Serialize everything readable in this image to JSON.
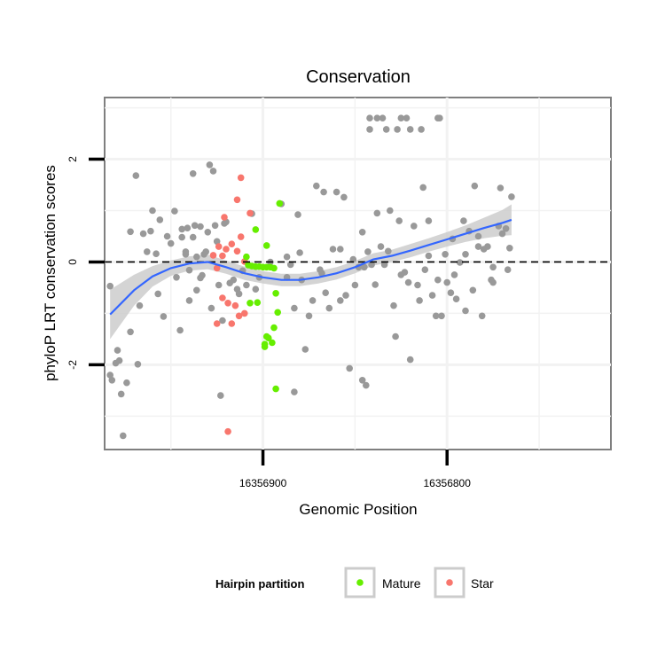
{
  "chart_data": {
    "type": "scatter",
    "title": "Conservation",
    "xlabel": "Genomic Position",
    "ylabel": "phyloP LRT conservation scores",
    "x_reversed": true,
    "xlim": [
      16356986,
      16356711
    ],
    "ylim": [
      -3.65,
      3.2
    ],
    "x_ticks": [
      16356900,
      16356800
    ],
    "x_tick_labels": [
      "16356900",
      "16356800"
    ],
    "y_ticks": [
      -2,
      0,
      2
    ],
    "y_tick_labels": [
      "-2",
      "0",
      "2"
    ],
    "grid": true,
    "reference_line": {
      "y": 0,
      "style": "dashed"
    },
    "legend": {
      "title": "Hairpin partition",
      "position": "bottom",
      "entries": [
        {
          "label": "Mature",
          "color": "#66ee00"
        },
        {
          "label": "Star",
          "color": "#f8766d"
        }
      ]
    },
    "colors": {
      "other": "#999999",
      "mature": "#66ee00",
      "star": "#f8766d",
      "smooth": "#3366ff",
      "ribbon": "#cccccc"
    },
    "series": [
      {
        "name": "Mature",
        "color": "#66ee00",
        "points": [
          [
            16356909,
            0.1
          ],
          [
            16356904,
            0.63
          ],
          [
            16356898,
            0.32
          ],
          [
            16356891,
            1.14
          ],
          [
            16356908,
            -0.06
          ],
          [
            16356906,
            -0.08
          ],
          [
            16356904,
            -0.09
          ],
          [
            16356902,
            -0.09
          ],
          [
            16356900,
            -0.1
          ],
          [
            16356898,
            -0.1
          ],
          [
            16356896,
            -0.1
          ],
          [
            16356894,
            -0.12
          ],
          [
            16356907,
            -0.8
          ],
          [
            16356903,
            -0.79
          ],
          [
            16356893,
            -0.61
          ],
          [
            16356892,
            -0.98
          ],
          [
            16356894,
            -1.28
          ],
          [
            16356897,
            -1.48
          ],
          [
            16356895,
            -1.57
          ],
          [
            16356899,
            -1.65
          ],
          [
            16356893,
            -2.47
          ],
          [
            16356899,
            -1.6
          ],
          [
            16356898,
            -1.45
          ]
        ]
      },
      {
        "name": "Star",
        "color": "#f8766d",
        "points": [
          [
            16356912,
            1.64
          ],
          [
            16356914,
            1.21
          ],
          [
            16356917,
            0.35
          ],
          [
            16356921,
            0.87
          ],
          [
            16356920,
            0.25
          ],
          [
            16356922,
            0.12
          ],
          [
            16356924,
            0.3
          ],
          [
            16356912,
            0.49
          ],
          [
            16356914,
            0.21
          ],
          [
            16356910,
            0.01
          ],
          [
            16356925,
            -0.12
          ],
          [
            16356922,
            -0.7
          ],
          [
            16356919,
            -0.8
          ],
          [
            16356915,
            -0.85
          ],
          [
            16356913,
            -1.05
          ],
          [
            16356910,
            -1.0
          ],
          [
            16356925,
            -1.2
          ],
          [
            16356917,
            -1.2
          ],
          [
            16356919,
            -3.3
          ],
          [
            16356907,
            0.95
          ],
          [
            16356927,
            0.13
          ]
        ]
      },
      {
        "points": [
          [
            16356983,
            -0.47
          ],
          [
            16356983,
            -2.2
          ],
          [
            16356982,
            -2.3
          ],
          [
            16356980,
            -1.97
          ],
          [
            16356979,
            -1.72
          ],
          [
            16356978,
            -1.92
          ],
          [
            16356977,
            -2.57
          ],
          [
            16356976,
            -3.38
          ],
          [
            16356974,
            -2.35
          ],
          [
            16356972,
            0.59
          ],
          [
            16356972,
            -1.36
          ],
          [
            16356969,
            1.68
          ],
          [
            16356968,
            -1.99
          ],
          [
            16356967,
            -0.85
          ],
          [
            16356965,
            0.55
          ],
          [
            16356963,
            0.2
          ],
          [
            16356961,
            0.6
          ],
          [
            16356960,
            1.0
          ],
          [
            16356958,
            0.16
          ],
          [
            16356957,
            -0.62
          ],
          [
            16356956,
            0.82
          ],
          [
            16356954,
            -1.06
          ],
          [
            16356952,
            0.5
          ],
          [
            16356950,
            0.36
          ],
          [
            16356948,
            0.99
          ],
          [
            16356947,
            -0.3
          ],
          [
            16356945,
            -1.33
          ],
          [
            16356944,
            0.48
          ],
          [
            16356942,
            0.15
          ],
          [
            16356941,
            0.66
          ],
          [
            16356940,
            -0.16
          ],
          [
            16356938,
            1.72
          ],
          [
            16356937,
            0.71
          ],
          [
            16356936,
            0.1
          ],
          [
            16356934,
            0.69
          ],
          [
            16356933,
            -0.26
          ],
          [
            16356931,
            0.2
          ],
          [
            16356930,
            0.58
          ],
          [
            16356929,
            1.89
          ],
          [
            16356928,
            -0.9
          ],
          [
            16356927,
            1.77
          ],
          [
            16356926,
            0.71
          ],
          [
            16356925,
            0.4
          ],
          [
            16356924,
            -0.45
          ],
          [
            16356922,
            -1.14
          ],
          [
            16356921,
            0.75
          ],
          [
            16356920,
            0.78
          ],
          [
            16356918,
            -0.41
          ],
          [
            16356916,
            -0.35
          ],
          [
            16356932,
            0.15
          ],
          [
            16356934,
            -0.31
          ],
          [
            16356936,
            -0.55
          ],
          [
            16356938,
            0.48
          ],
          [
            16356940,
            -0.75
          ],
          [
            16356942,
            0.2
          ],
          [
            16356944,
            0.64
          ],
          [
            16356923,
            -2.6
          ],
          [
            16356914,
            -0.53
          ],
          [
            16356911,
            -0.17
          ],
          [
            16356909,
            -0.45
          ],
          [
            16356906,
            0.94
          ],
          [
            16356904,
            -0.53
          ],
          [
            16356902,
            -0.3
          ],
          [
            16356890,
            1.13
          ],
          [
            16356887,
            0.1
          ],
          [
            16356885,
            -0.05
          ],
          [
            16356883,
            -0.9
          ],
          [
            16356883,
            -2.53
          ],
          [
            16356881,
            0.92
          ],
          [
            16356879,
            -0.35
          ],
          [
            16356877,
            -1.7
          ],
          [
            16356875,
            -1.05
          ],
          [
            16356873,
            -0.75
          ],
          [
            16356871,
            1.48
          ],
          [
            16356869,
            -0.15
          ],
          [
            16356867,
            1.36
          ],
          [
            16356866,
            -0.6
          ],
          [
            16356864,
            -0.9
          ],
          [
            16356862,
            0.25
          ],
          [
            16356860,
            1.36
          ],
          [
            16356858,
            0.25
          ],
          [
            16356856,
            1.26
          ],
          [
            16356855,
            -0.65
          ],
          [
            16356853,
            -2.07
          ],
          [
            16356851,
            0.05
          ],
          [
            16356850,
            -0.45
          ],
          [
            16356848,
            -0.1
          ],
          [
            16356846,
            -2.3
          ],
          [
            16356845,
            -0.1
          ],
          [
            16356844,
            -2.4
          ],
          [
            16356843,
            0.2
          ],
          [
            16356841,
            -0.05
          ],
          [
            16356839,
            -0.44
          ],
          [
            16356838,
            0.95
          ],
          [
            16356836,
            0.3
          ],
          [
            16356834,
            -0.05
          ],
          [
            16356832,
            0.21
          ],
          [
            16356831,
            1.0
          ],
          [
            16356829,
            -0.85
          ],
          [
            16356828,
            -1.45
          ],
          [
            16356826,
            0.8
          ],
          [
            16356825,
            -0.25
          ],
          [
            16356823,
            -0.2
          ],
          [
            16356821,
            -0.4
          ],
          [
            16356820,
            -1.9
          ],
          [
            16356818,
            0.7
          ],
          [
            16356816,
            -0.45
          ],
          [
            16356815,
            -0.75
          ],
          [
            16356813,
            1.45
          ],
          [
            16356812,
            -0.15
          ],
          [
            16356810,
            0.8
          ],
          [
            16356808,
            -0.65
          ],
          [
            16356806,
            -1.05
          ],
          [
            16356805,
            -0.35
          ],
          [
            16356803,
            -1.05
          ],
          [
            16356801,
            0.15
          ],
          [
            16356800,
            -0.4
          ],
          [
            16356798,
            -0.6
          ],
          [
            16356796,
            -0.25
          ],
          [
            16356795,
            -0.72
          ],
          [
            16356793,
            -0.01
          ],
          [
            16356791,
            0.8
          ],
          [
            16356790,
            -0.95
          ],
          [
            16356788,
            0.6
          ],
          [
            16356786,
            -0.55
          ],
          [
            16356785,
            1.48
          ],
          [
            16356783,
            0.5
          ],
          [
            16356781,
            -1.05
          ],
          [
            16356780,
            0.25
          ],
          [
            16356778,
            0.3
          ],
          [
            16356776,
            -0.35
          ],
          [
            16356775,
            -0.4
          ],
          [
            16356772,
            0.7
          ],
          [
            16356771,
            1.44
          ],
          [
            16356768,
            0.65
          ],
          [
            16356766,
            0.27
          ],
          [
            16356765,
            1.27
          ],
          [
            16356842,
            2.8
          ],
          [
            16356842,
            2.58
          ],
          [
            16356838,
            2.8
          ],
          [
            16356835,
            2.8
          ],
          [
            16356833,
            2.58
          ],
          [
            16356827,
            2.58
          ],
          [
            16356825,
            2.8
          ],
          [
            16356822,
            2.8
          ],
          [
            16356820,
            2.58
          ],
          [
            16356814,
            2.58
          ],
          [
            16356805,
            2.8
          ],
          [
            16356804,
            2.8
          ],
          [
            16356913,
            -0.62
          ],
          [
            16356896,
            0.0
          ],
          [
            16356887,
            -0.3
          ],
          [
            16356880,
            0.18
          ],
          [
            16356868,
            -0.22
          ],
          [
            16356858,
            -0.75
          ],
          [
            16356846,
            0.58
          ],
          [
            16356810,
            0.12
          ],
          [
            16356797,
            0.45
          ],
          [
            16356790,
            0.15
          ],
          [
            16356783,
            0.3
          ],
          [
            16356775,
            -0.1
          ],
          [
            16356770,
            0.55
          ],
          [
            16356767,
            -0.15
          ]
        ]
      }
    ],
    "smooth_fit": {
      "x": [
        16356983,
        16356970,
        16356960,
        16356950,
        16356940,
        16356930,
        16356920,
        16356910,
        16356900,
        16356890,
        16356880,
        16356870,
        16356860,
        16356850,
        16356840,
        16356830,
        16356820,
        16356810,
        16356800,
        16356790,
        16356780,
        16356770,
        16356765
      ],
      "y": [
        -1.02,
        -0.55,
        -0.28,
        -0.12,
        -0.03,
        0.0,
        -0.1,
        -0.22,
        -0.3,
        -0.35,
        -0.35,
        -0.3,
        -0.22,
        -0.1,
        0.05,
        0.12,
        0.22,
        0.33,
        0.44,
        0.55,
        0.66,
        0.76,
        0.82
      ],
      "ci_halfwidth": [
        0.48,
        0.3,
        0.2,
        0.15,
        0.14,
        0.14,
        0.13,
        0.13,
        0.12,
        0.12,
        0.12,
        0.12,
        0.12,
        0.12,
        0.12,
        0.12,
        0.13,
        0.13,
        0.14,
        0.16,
        0.2,
        0.25,
        0.3
      ]
    }
  }
}
